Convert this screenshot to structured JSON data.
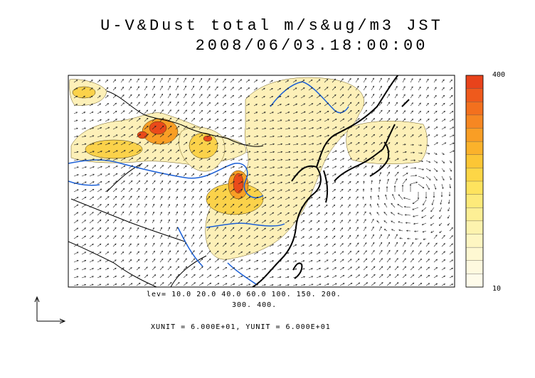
{
  "figure": {
    "title_line1": "U-V&Dust total m/s&ug/m3 JST",
    "title_line2": "2008/06/03.18:00:00"
  },
  "colorbar": {
    "top_label": "400",
    "bottom_label": "10",
    "colors_top_to_bottom": [
      "#e8431b",
      "#ef5a1c",
      "#f3701e",
      "#f68722",
      "#f99e25",
      "#fbb22b",
      "#fcc635",
      "#fdd646",
      "#fee35e",
      "#fdea7a",
      "#fdef95",
      "#fdf3ae",
      "#fef6c2",
      "#fef8d2",
      "#fef9df",
      "#fefbea"
    ]
  },
  "contour_levels": {
    "line1": "lev= 10.0 20.0 40.0 60.0 100. 150. 200.",
    "line2": "300. 400."
  },
  "vector_units": {
    "text": "XUNIT = 6.000E+01, YUNIT = 6.000E+01"
  },
  "colors": {
    "coastline": "#000000",
    "rivers": "#1a5fd6",
    "dust_low": "#fdf0b8",
    "dust_mid": "#fbd24a",
    "dust_high": "#ea4a1a",
    "wind_vectors": "#222222"
  }
}
